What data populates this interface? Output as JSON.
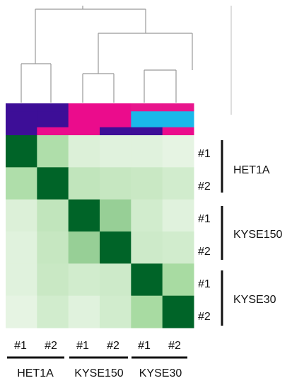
{
  "chart_data": {
    "type": "heatmap",
    "rows": [
      "#1",
      "#2",
      "#1",
      "#2",
      "#1",
      "#2"
    ],
    "columns": [
      "#1",
      "#2",
      "#1",
      "#2",
      "#1",
      "#2"
    ],
    "row_groups": [
      {
        "label": "HET1A",
        "members": [
          0,
          1
        ]
      },
      {
        "label": "KYSE150",
        "members": [
          2,
          3
        ]
      },
      {
        "label": "KYSE30",
        "members": [
          4,
          5
        ]
      }
    ],
    "column_groups": [
      {
        "label": "HET1A",
        "members": [
          0,
          1
        ]
      },
      {
        "label": "KYSE150",
        "members": [
          2,
          3
        ]
      },
      {
        "label": "KYSE30",
        "members": [
          4,
          5
        ]
      }
    ],
    "values": [
      [
        1.0,
        0.45,
        0.15,
        0.12,
        0.12,
        0.08
      ],
      [
        0.45,
        1.0,
        0.33,
        0.3,
        0.28,
        0.22
      ],
      [
        0.15,
        0.33,
        1.0,
        0.55,
        0.22,
        0.12
      ],
      [
        0.12,
        0.3,
        0.55,
        1.0,
        0.25,
        0.22
      ],
      [
        0.12,
        0.28,
        0.22,
        0.25,
        1.0,
        0.5
      ],
      [
        0.08,
        0.22,
        0.12,
        0.22,
        0.5,
        1.0
      ]
    ],
    "colorscale": [
      "#f2f9ef",
      "#a8dba2",
      "#006428"
    ],
    "annotation_tracks": [
      [
        "#3d0e97",
        "#3d0e97",
        "#eb0c8c",
        "#eb0c8c",
        "#e8158c",
        "#e8158c"
      ],
      [
        "#3d0e97",
        "#3d0e97",
        "#eb0c8c",
        "#eb0c8c",
        "#1ab8ea",
        "#1ab8ea"
      ],
      [
        "#3d0e97",
        "#3d0e97",
        "#eb0c8c",
        "#eb0c8c",
        "#1ab8ea",
        "#1ab8ea"
      ],
      [
        "#3d0e97",
        "#eb0c8c",
        "#eb0c8c",
        "#3d0e97",
        "#3d0e97",
        "#eb0c8c"
      ]
    ],
    "dendrogram": "top",
    "grid": false,
    "legend": "none"
  }
}
